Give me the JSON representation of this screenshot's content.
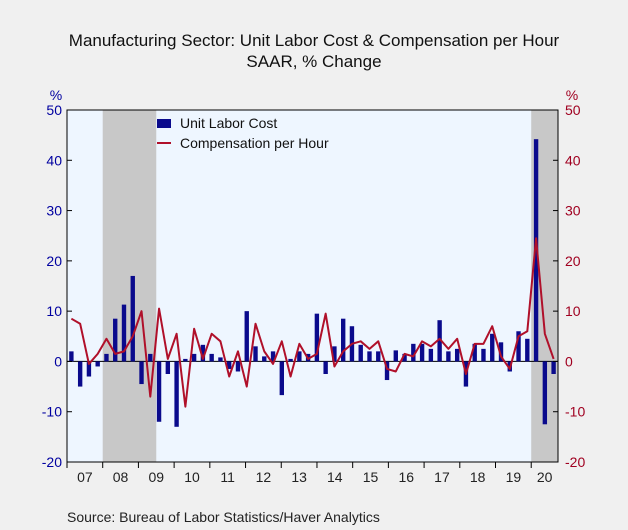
{
  "title": "Manufacturing Sector: Unit Labor Cost & Compensation per Hour",
  "subtitle": "SAAR, % Change",
  "source": "Source:  Bureau of Labor Statistics/Haver Analytics",
  "chart_data": {
    "type": "bar",
    "left_axis_unit": "%",
    "right_axis_unit": "%",
    "ylim": [
      -20,
      50
    ],
    "yticks": [
      -20,
      -10,
      0,
      10,
      20,
      30,
      40,
      50
    ],
    "x_year_labels": [
      "07",
      "08",
      "09",
      "10",
      "11",
      "12",
      "13",
      "14",
      "15",
      "16",
      "17",
      "18",
      "19",
      "20"
    ],
    "x_start": 2007.0,
    "x_end": 2020.75,
    "recession_shading": [
      [
        2008.0,
        2009.5
      ],
      [
        2020.0,
        2020.75
      ]
    ],
    "legend_position": "top-left",
    "colors": {
      "plot_background": "#eef6ff",
      "recession": "#c8c8c8",
      "left_axis": "#0000a0",
      "right_axis": "#a00020",
      "bar": "#0a0a8c",
      "line": "#b0102a"
    },
    "series": [
      {
        "name": "Unit Labor Cost",
        "kind": "bar",
        "values": [
          2,
          -5,
          -3,
          -1,
          1.5,
          8.5,
          11.3,
          17,
          -4.5,
          1.5,
          -12,
          -2.5,
          -13,
          0.5,
          1.5,
          3.3,
          1.5,
          0.8,
          -1.5,
          -2,
          10,
          3,
          1,
          2,
          -6.7,
          0.5,
          2,
          1.5,
          9.5,
          -2.5,
          3,
          8.5,
          7,
          3.3,
          2,
          2,
          -3.7,
          2.2,
          1.5,
          3.5,
          3.5,
          2.5,
          8.2,
          2,
          2.5,
          -5,
          3.5,
          2.5,
          5.5,
          3.8,
          -2,
          6,
          4.5,
          44.2,
          -12.5,
          -2.5
        ]
      },
      {
        "name": "Compensation per Hour",
        "kind": "line",
        "values": [
          8.5,
          7.5,
          -0.5,
          1.5,
          4.5,
          1.5,
          2,
          5,
          10,
          -7,
          10.5,
          0.5,
          5.5,
          -9,
          6.5,
          0.5,
          5.5,
          4,
          -3,
          2,
          -5,
          7.5,
          2,
          -0.5,
          4,
          -3,
          3.5,
          0.5,
          1.5,
          9.5,
          -1,
          2,
          3.5,
          4,
          2.5,
          4,
          -1.5,
          -2,
          1.5,
          1,
          4,
          3,
          4.5,
          2.5,
          4.5,
          -2.5,
          3.5,
          3.5,
          7,
          1,
          -1.5,
          5,
          6,
          24.5,
          5.5,
          0.5
        ]
      }
    ]
  }
}
